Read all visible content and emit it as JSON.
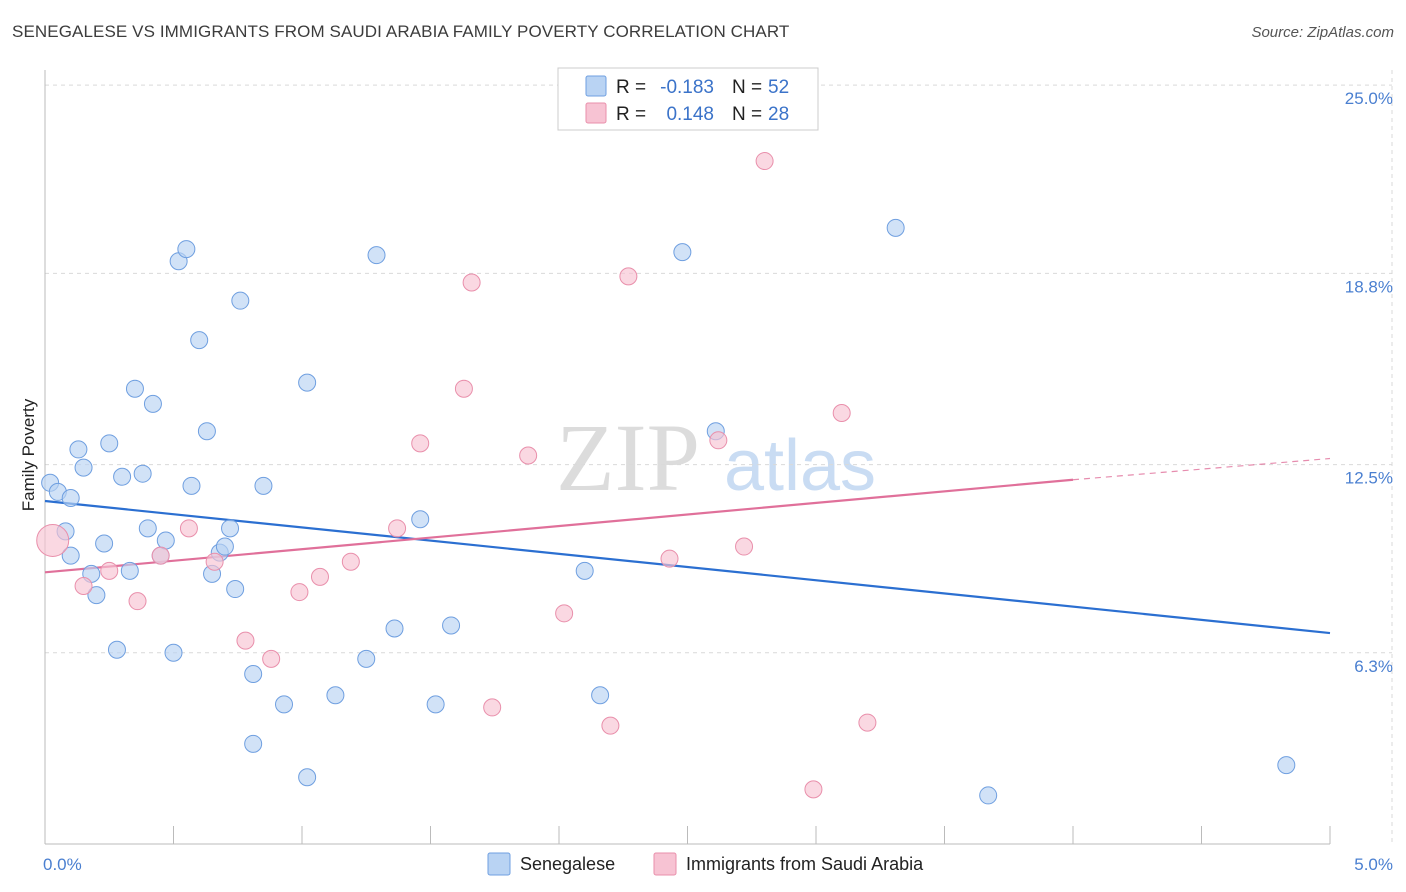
{
  "header": {
    "title": "SENEGALESE VS IMMIGRANTS FROM SAUDI ARABIA FAMILY POVERTY CORRELATION CHART",
    "source": "Source: ZipAtlas.com"
  },
  "watermark": {
    "zip": "ZIP",
    "atlas": "atlas"
  },
  "colors": {
    "senegalese_fill": "#b9d3f3",
    "senegalese_stroke": "#6f9fe0",
    "senegalese_line": "#2b6fd1",
    "saudi_fill": "#f7c3d3",
    "saudi_stroke": "#e98fab",
    "saudi_line": "#e0709a",
    "grid": "#d9d9d9",
    "tick_label": "#4a7fd0"
  },
  "legend": {
    "rows": [
      {
        "r_label": "R =",
        "r_value": "-0.183",
        "n_label": "N =",
        "n_value": "52"
      },
      {
        "r_label": "R =",
        "r_value": "0.148",
        "n_label": "N =",
        "n_value": "28"
      }
    ]
  },
  "chart_data": {
    "type": "scatter",
    "title": "SENEGALESE VS IMMIGRANTS FROM SAUDI ARABIA FAMILY POVERTY CORRELATION CHART",
    "xlabel": "",
    "ylabel": "Family Poverty",
    "xlim": [
      0,
      5.0
    ],
    "ylim": [
      0,
      25.5
    ],
    "x_tick_labels": [
      "0.0%",
      "5.0%"
    ],
    "y_ticks": [
      6.3,
      12.5,
      18.8,
      25.0
    ],
    "y_tick_labels": [
      "6.3%",
      "12.5%",
      "18.8%",
      "25.0%"
    ],
    "grid": true,
    "series": [
      {
        "name": "Senegalese",
        "r": -0.183,
        "n": 52,
        "trend": {
          "x": [
            0.0,
            5.0
          ],
          "y": [
            11.3,
            6.95
          ]
        },
        "points": [
          [
            0.02,
            11.9
          ],
          [
            0.05,
            11.6
          ],
          [
            0.08,
            10.3
          ],
          [
            0.1,
            11.4
          ],
          [
            0.13,
            13.0
          ],
          [
            0.15,
            12.4
          ],
          [
            0.18,
            8.9
          ],
          [
            0.2,
            8.2
          ],
          [
            0.23,
            9.9
          ],
          [
            0.25,
            13.2
          ],
          [
            0.28,
            6.4
          ],
          [
            0.3,
            12.1
          ],
          [
            0.33,
            9.0
          ],
          [
            0.35,
            15.0
          ],
          [
            0.38,
            12.2
          ],
          [
            0.4,
            10.4
          ],
          [
            0.42,
            14.5
          ],
          [
            0.45,
            9.5
          ],
          [
            0.47,
            10.0
          ],
          [
            0.5,
            6.3
          ],
          [
            0.52,
            19.2
          ],
          [
            0.55,
            19.6
          ],
          [
            0.57,
            11.8
          ],
          [
            0.6,
            16.6
          ],
          [
            0.63,
            13.6
          ],
          [
            0.65,
            8.9
          ],
          [
            0.68,
            9.6
          ],
          [
            0.7,
            9.8
          ],
          [
            0.72,
            10.4
          ],
          [
            0.74,
            8.4
          ],
          [
            0.76,
            17.9
          ],
          [
            0.81,
            5.6
          ],
          [
            0.81,
            3.3
          ],
          [
            0.85,
            11.8
          ],
          [
            0.93,
            4.6
          ],
          [
            1.02,
            2.2
          ],
          [
            1.02,
            15.2
          ],
          [
            1.13,
            4.9
          ],
          [
            1.25,
            6.1
          ],
          [
            1.29,
            19.4
          ],
          [
            1.36,
            7.1
          ],
          [
            1.46,
            10.7
          ],
          [
            1.52,
            4.6
          ],
          [
            1.58,
            7.2
          ],
          [
            2.1,
            9.0
          ],
          [
            2.16,
            4.9
          ],
          [
            2.48,
            19.5
          ],
          [
            2.61,
            13.6
          ],
          [
            3.31,
            20.3
          ],
          [
            3.67,
            1.6
          ],
          [
            4.83,
            2.6
          ],
          [
            0.1,
            9.5
          ]
        ]
      },
      {
        "name": "Immigrants from Saudi Arabia",
        "r": 0.148,
        "n": 28,
        "trend": {
          "x": [
            0.0,
            4.0
          ],
          "y": [
            8.95,
            12.0
          ],
          "dashed_to": [
            5.0,
            12.7
          ]
        },
        "points": [
          [
            0.03,
            10.0
          ],
          [
            0.15,
            8.5
          ],
          [
            0.25,
            9.0
          ],
          [
            0.36,
            8.0
          ],
          [
            0.45,
            9.5
          ],
          [
            0.56,
            10.4
          ],
          [
            0.66,
            9.3
          ],
          [
            0.78,
            6.7
          ],
          [
            0.88,
            6.1
          ],
          [
            0.99,
            8.3
          ],
          [
            1.07,
            8.8
          ],
          [
            1.19,
            9.3
          ],
          [
            1.37,
            10.4
          ],
          [
            1.46,
            13.2
          ],
          [
            1.63,
            15.0
          ],
          [
            1.66,
            18.5
          ],
          [
            1.74,
            4.5
          ],
          [
            1.88,
            12.8
          ],
          [
            2.02,
            7.6
          ],
          [
            2.2,
            3.9
          ],
          [
            2.27,
            18.7
          ],
          [
            2.43,
            9.4
          ],
          [
            2.62,
            13.3
          ],
          [
            2.72,
            9.8
          ],
          [
            2.8,
            22.5
          ],
          [
            2.99,
            1.8
          ],
          [
            3.1,
            14.2
          ],
          [
            3.2,
            4.0
          ]
        ]
      }
    ]
  }
}
